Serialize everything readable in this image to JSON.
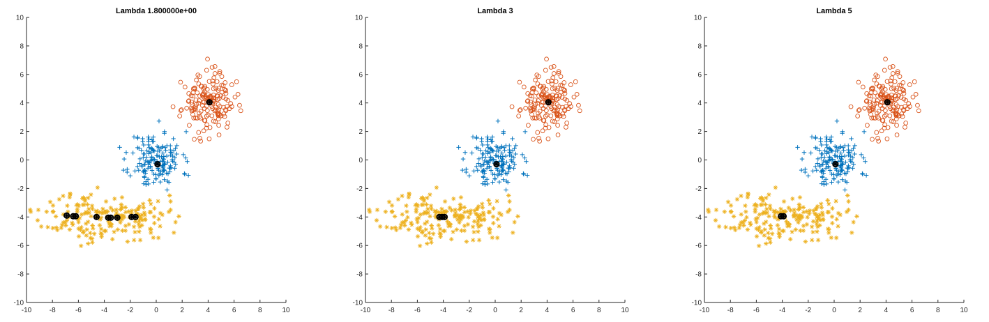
{
  "chart_data": [
    {
      "type": "scatter",
      "title": "Lambda 1.800000e+00",
      "xlim": [
        -10,
        10
      ],
      "ylim": [
        -10,
        10
      ],
      "xticks": [
        -10,
        -8,
        -6,
        -4,
        -2,
        0,
        2,
        4,
        6,
        8,
        10
      ],
      "yticks": [
        -10,
        -8,
        -6,
        -4,
        -2,
        0,
        2,
        4,
        6,
        8,
        10
      ],
      "grid": false,
      "clusters": [
        {
          "marker": "+",
          "color": "#0072BD",
          "center": [
            0,
            0
          ],
          "spread": [
            1.0,
            1.0
          ],
          "count": 170,
          "seed": 11
        },
        {
          "marker": "o",
          "color": "#D95319",
          "center": [
            4,
            4
          ],
          "spread": [
            1.0,
            1.0
          ],
          "count": 170,
          "seed": 23
        },
        {
          "marker": "*",
          "color": "#EDB120",
          "center": [
            -4,
            -4
          ],
          "spread": [
            2.4,
            0.85
          ],
          "count": 200,
          "seed": 37
        }
      ],
      "centroids": [
        {
          "x": 4.1,
          "y": 4.05
        },
        {
          "x": 0.1,
          "y": -0.3
        },
        {
          "x": -6.9,
          "y": -3.9
        },
        {
          "x": -6.4,
          "y": -3.95
        },
        {
          "x": -6.2,
          "y": -3.95
        },
        {
          "x": -4.6,
          "y": -4.0
        },
        {
          "x": -3.7,
          "y": -4.05
        },
        {
          "x": -3.5,
          "y": -4.05
        },
        {
          "x": -3.0,
          "y": -4.05
        },
        {
          "x": -1.9,
          "y": -4.0
        },
        {
          "x": -1.6,
          "y": -4.0
        }
      ]
    },
    {
      "type": "scatter",
      "title": "Lambda 3",
      "xlim": [
        -10,
        10
      ],
      "ylim": [
        -10,
        10
      ],
      "xticks": [
        -10,
        -8,
        -6,
        -4,
        -2,
        0,
        2,
        4,
        6,
        8,
        10
      ],
      "yticks": [
        -10,
        -8,
        -6,
        -4,
        -2,
        0,
        2,
        4,
        6,
        8,
        10
      ],
      "grid": false,
      "clusters": [
        {
          "marker": "+",
          "color": "#0072BD",
          "center": [
            0,
            0
          ],
          "spread": [
            1.0,
            1.0
          ],
          "count": 170,
          "seed": 11
        },
        {
          "marker": "o",
          "color": "#D95319",
          "center": [
            4,
            4
          ],
          "spread": [
            1.0,
            1.0
          ],
          "count": 170,
          "seed": 23
        },
        {
          "marker": "*",
          "color": "#EDB120",
          "center": [
            -4,
            -4
          ],
          "spread": [
            2.4,
            0.85
          ],
          "count": 200,
          "seed": 37
        }
      ],
      "centroids": [
        {
          "x": 4.1,
          "y": 4.05
        },
        {
          "x": 0.1,
          "y": -0.3
        },
        {
          "x": -4.3,
          "y": -4.0
        },
        {
          "x": -4.1,
          "y": -4.0
        },
        {
          "x": -3.9,
          "y": -4.0
        }
      ]
    },
    {
      "type": "scatter",
      "title": "Lambda 5",
      "xlim": [
        -10,
        10
      ],
      "ylim": [
        -10,
        10
      ],
      "xticks": [
        -10,
        -8,
        -6,
        -4,
        -2,
        0,
        2,
        4,
        6,
        8,
        10
      ],
      "yticks": [
        -10,
        -8,
        -6,
        -4,
        -2,
        0,
        2,
        4,
        6,
        8,
        10
      ],
      "grid": false,
      "clusters": [
        {
          "marker": "+",
          "color": "#0072BD",
          "center": [
            0,
            0
          ],
          "spread": [
            1.0,
            1.0
          ],
          "count": 170,
          "seed": 11
        },
        {
          "marker": "o",
          "color": "#D95319",
          "center": [
            4,
            4
          ],
          "spread": [
            1.0,
            1.0
          ],
          "count": 170,
          "seed": 23
        },
        {
          "marker": "*",
          "color": "#EDB120",
          "center": [
            -4,
            -4
          ],
          "spread": [
            2.4,
            0.85
          ],
          "count": 200,
          "seed": 37
        }
      ],
      "centroids": [
        {
          "x": 4.1,
          "y": 4.05
        },
        {
          "x": 0.1,
          "y": -0.3
        },
        {
          "x": -4.1,
          "y": -3.95
        },
        {
          "x": -3.9,
          "y": -3.95
        }
      ]
    }
  ]
}
